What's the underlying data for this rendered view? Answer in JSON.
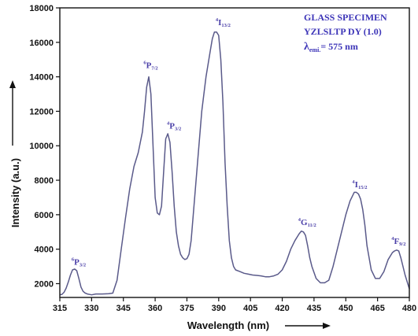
{
  "chart_data": {
    "type": "line",
    "xlabel": "Wavelength (nm)",
    "ylabel": "Intensity (a.u.)",
    "xlim": [
      315,
      480
    ],
    "ylim": [
      1200,
      18000
    ],
    "x_ticks": [
      "315",
      "330",
      "345",
      "360",
      "375",
      "390",
      "405",
      "420",
      "435",
      "450",
      "465",
      "480"
    ],
    "y_ticks": [
      "2000",
      "4000",
      "6000",
      "8000",
      "10000",
      "12000",
      "14000",
      "16000",
      "18000"
    ],
    "grid": false,
    "line_color": "#5a5a8a",
    "annotation_color": "#4a3fa8",
    "legend_text": {
      "line1": "GLASS SPECIMEN",
      "line2": "YZLSLTP DY (1.0)",
      "line3_lambda": "λ",
      "line3_sub": "emi.",
      "line3_rest": "= 575 nm"
    },
    "peak_labels": [
      {
        "sup": "6",
        "main": "P",
        "sub": "3/2",
        "x": 323.5,
        "y": 3100
      },
      {
        "sup": "6",
        "main": "P",
        "sub": "7/2",
        "x": 357.5,
        "y": 14500
      },
      {
        "sup": "4",
        "main": "P",
        "sub": "3/2",
        "x": 368.5,
        "y": 11000
      },
      {
        "sup": "4",
        "main": "I",
        "sub": "13/2",
        "x": 391.5,
        "y": 17000
      },
      {
        "sup": "4",
        "main": "G",
        "sub": "11/2",
        "x": 430.5,
        "y": 5400
      },
      {
        "sup": "4",
        "main": "I",
        "sub": "15/2",
        "x": 456,
        "y": 7600
      },
      {
        "sup": "4",
        "main": "F",
        "sub": "9/2",
        "x": 474.5,
        "y": 4300
      }
    ],
    "series": [
      {
        "x": [
          315,
          316,
          317,
          318,
          319,
          320,
          321,
          322,
          323,
          324,
          325,
          326,
          327,
          328,
          330,
          332,
          335,
          338,
          340,
          342,
          344,
          346,
          348,
          350,
          352,
          354,
          355,
          356,
          357,
          358,
          359,
          360,
          361,
          362,
          363,
          364,
          365,
          366,
          367,
          368,
          369,
          370,
          371,
          372,
          373,
          374,
          375,
          376,
          377,
          378,
          380,
          382,
          384,
          386,
          387,
          388,
          389,
          390,
          391,
          392,
          393,
          394,
          395,
          396,
          397,
          398,
          400,
          402,
          404,
          406,
          408,
          410,
          412,
          414,
          416,
          418,
          420,
          422,
          424,
          426,
          428,
          429,
          430,
          431,
          432,
          433,
          434,
          436,
          438,
          440,
          442,
          444,
          446,
          448,
          450,
          452,
          454,
          455,
          456,
          457,
          458,
          459,
          460,
          462,
          464,
          466,
          468,
          470,
          472,
          473,
          474,
          475,
          476,
          478,
          480
        ],
        "y": [
          1350,
          1380,
          1500,
          1750,
          2100,
          2500,
          2800,
          2850,
          2750,
          2300,
          1800,
          1550,
          1450,
          1400,
          1350,
          1400,
          1400,
          1420,
          1450,
          2200,
          4000,
          5800,
          7500,
          8800,
          9600,
          10800,
          12000,
          13400,
          14000,
          13000,
          10000,
          7000,
          6100,
          6000,
          6500,
          8500,
          10400,
          10700,
          10200,
          8500,
          6500,
          5000,
          4200,
          3700,
          3500,
          3400,
          3450,
          3700,
          4500,
          6000,
          9000,
          12000,
          14000,
          15500,
          16200,
          16600,
          16600,
          16400,
          15000,
          12500,
          9000,
          6500,
          4500,
          3500,
          3000,
          2800,
          2700,
          2600,
          2550,
          2500,
          2480,
          2450,
          2400,
          2400,
          2450,
          2550,
          2800,
          3300,
          4000,
          4500,
          4900,
          5050,
          5000,
          4800,
          4200,
          3500,
          3000,
          2300,
          2050,
          2050,
          2200,
          3000,
          4000,
          5000,
          6000,
          6800,
          7300,
          7300,
          7200,
          6900,
          6300,
          5400,
          4200,
          2800,
          2300,
          2300,
          2700,
          3400,
          3800,
          3900,
          3950,
          3900,
          3500,
          2500,
          1700
        ]
      }
    ]
  }
}
